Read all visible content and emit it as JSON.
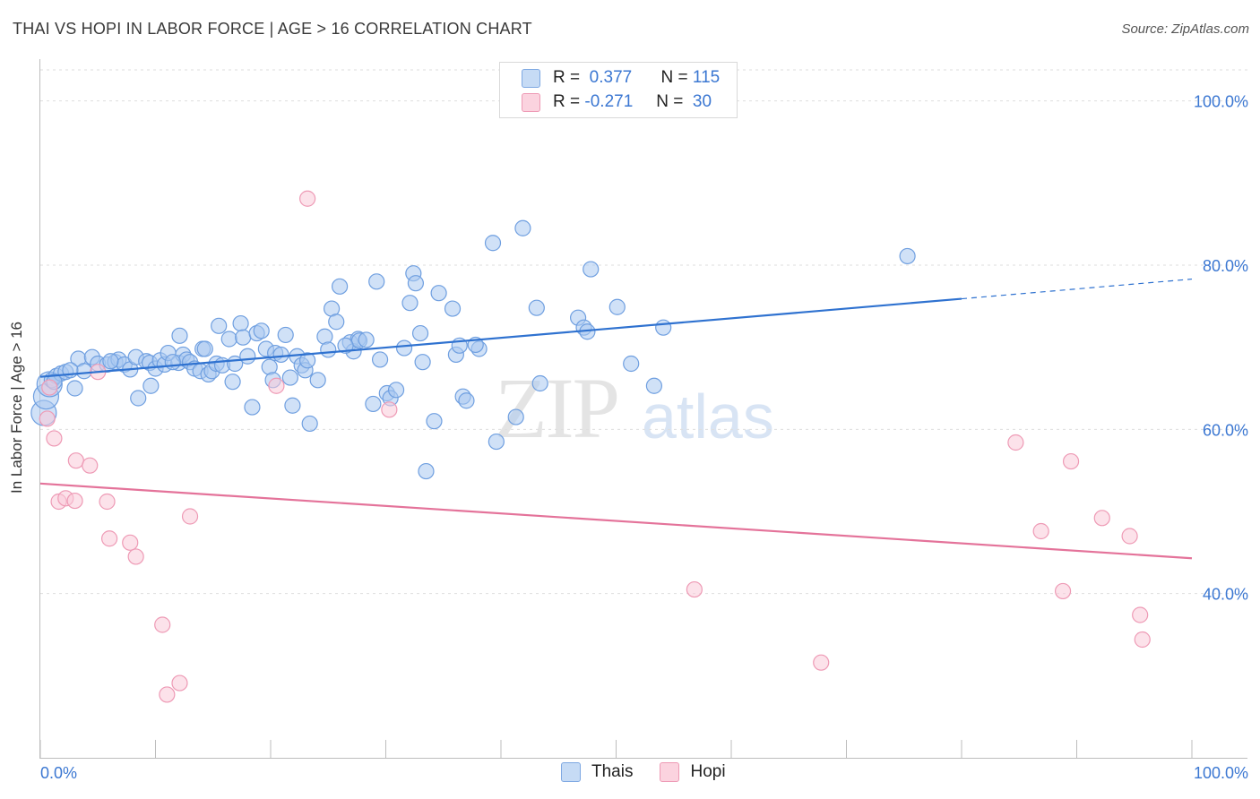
{
  "header": {
    "title": "THAI VS HOPI IN LABOR FORCE | AGE > 16 CORRELATION CHART",
    "source": "Source: ZipAtlas.com"
  },
  "legend": {
    "rows": [
      {
        "r_label": "R =",
        "r_value": "0.377",
        "n_label": "N =",
        "n_value": "115",
        "color": "#a9c8f0"
      },
      {
        "r_label": "R =",
        "r_value": "-0.271",
        "n_label": "N =",
        "n_value": "30",
        "color": "#f6b9cb"
      }
    ],
    "bottom": [
      {
        "label": "Thais",
        "color": "#a9c8f0"
      },
      {
        "label": "Hopi",
        "color": "#f6b9cb"
      }
    ]
  },
  "watermark": {
    "zip": "ZIP",
    "atlas": "atlas"
  },
  "chart_data": {
    "type": "scatter",
    "title": "THAI VS HOPI IN LABOR FORCE | AGE > 16 CORRELATION CHART",
    "xlabel": "",
    "ylabel": "In Labor Force | Age > 16",
    "xlim": [
      0,
      100
    ],
    "ylim": [
      20,
      104
    ],
    "x_tick_labels": [
      "0.0%",
      "100.0%"
    ],
    "y_ticks": [
      40,
      60,
      80,
      100
    ],
    "y_tick_labels": [
      "40.0%",
      "60.0%",
      "80.0%",
      "100.0%"
    ],
    "grid": true,
    "legend_position": "top-center",
    "colors": {
      "thais_fill": "#a9c8f0",
      "thais_stroke": "#6f9fe0",
      "thais_line": "#2f72d0",
      "hopi_fill": "#f9cad8",
      "hopi_stroke": "#ee9ab5",
      "hopi_line": "#e4739a",
      "tick_text": "#3b77d2"
    },
    "series": [
      {
        "name": "Thais",
        "points": [
          [
            0.3,
            62
          ],
          [
            0.5,
            64
          ],
          [
            0.8,
            65.5
          ],
          [
            1,
            66
          ],
          [
            1.4,
            66.5
          ],
          [
            1.8,
            66.8
          ],
          [
            2.2,
            67
          ],
          [
            3,
            65
          ],
          [
            3.3,
            68.6
          ],
          [
            3.8,
            67.1
          ],
          [
            4.5,
            68.8
          ],
          [
            5,
            68
          ],
          [
            5.8,
            67.9
          ],
          [
            6.5,
            68.2
          ],
          [
            6.8,
            68.5
          ],
          [
            7.3,
            67.9
          ],
          [
            7.8,
            67.3
          ],
          [
            8.3,
            68.8
          ],
          [
            8.5,
            63.8
          ],
          [
            9.2,
            68.3
          ],
          [
            9.5,
            68.1
          ],
          [
            9.6,
            65.3
          ],
          [
            10,
            67.4
          ],
          [
            10.4,
            68.4
          ],
          [
            10.8,
            67.9
          ],
          [
            11.1,
            69.3
          ],
          [
            12,
            68.1
          ],
          [
            12.1,
            71.4
          ],
          [
            12.4,
            69.1
          ],
          [
            12.7,
            68.5
          ],
          [
            13,
            68.2
          ],
          [
            13.4,
            67.4
          ],
          [
            13.9,
            67.1
          ],
          [
            14.1,
            69.8
          ],
          [
            14.3,
            69.8
          ],
          [
            14.6,
            66.7
          ],
          [
            14.9,
            67.1
          ],
          [
            15.3,
            68
          ],
          [
            15.5,
            72.6
          ],
          [
            15.8,
            67.8
          ],
          [
            16.4,
            71
          ],
          [
            16.7,
            65.8
          ],
          [
            16.9,
            68
          ],
          [
            17.4,
            72.9
          ],
          [
            17.6,
            71.2
          ],
          [
            18,
            68.9
          ],
          [
            18.4,
            62.7
          ],
          [
            18.8,
            71.7
          ],
          [
            19.2,
            72
          ],
          [
            19.6,
            69.8
          ],
          [
            19.9,
            67.6
          ],
          [
            20.2,
            66
          ],
          [
            20.4,
            69.3
          ],
          [
            20.9,
            69.1
          ],
          [
            21.3,
            71.5
          ],
          [
            21.7,
            66.3
          ],
          [
            21.9,
            62.9
          ],
          [
            22.3,
            68.9
          ],
          [
            22.7,
            67.8
          ],
          [
            23,
            67.2
          ],
          [
            23.2,
            68.4
          ],
          [
            23.4,
            60.7
          ],
          [
            24.1,
            66
          ],
          [
            24.7,
            71.3
          ],
          [
            25,
            69.7
          ],
          [
            25.3,
            74.7
          ],
          [
            25.7,
            73.1
          ],
          [
            26,
            77.4
          ],
          [
            26.9,
            70.6
          ],
          [
            27.2,
            69.5
          ],
          [
            27.6,
            71
          ],
          [
            27.7,
            70.8
          ],
          [
            28.3,
            70.9
          ],
          [
            28.9,
            63.1
          ],
          [
            29.2,
            78
          ],
          [
            29.5,
            68.5
          ],
          [
            30.1,
            64.4
          ],
          [
            30.4,
            63.8
          ],
          [
            30.9,
            64.8
          ],
          [
            31.6,
            69.9
          ],
          [
            32.1,
            75.4
          ],
          [
            32.4,
            79
          ],
          [
            32.6,
            77.8
          ],
          [
            33,
            71.7
          ],
          [
            33.2,
            68.2
          ],
          [
            33.5,
            54.9
          ],
          [
            34.2,
            61
          ],
          [
            34.6,
            76.6
          ],
          [
            35.8,
            74.7
          ],
          [
            36.1,
            69.1
          ],
          [
            36.4,
            70.2
          ],
          [
            36.7,
            64
          ],
          [
            37,
            63.5
          ],
          [
            38.1,
            69.8
          ],
          [
            39.3,
            82.7
          ],
          [
            39.6,
            58.5
          ],
          [
            41.3,
            61.5
          ],
          [
            41.9,
            84.5
          ],
          [
            43.1,
            74.8
          ],
          [
            43.4,
            65.6
          ],
          [
            46.7,
            73.6
          ],
          [
            47.2,
            72.4
          ],
          [
            47.5,
            71.9
          ],
          [
            47.8,
            79.5
          ],
          [
            50.1,
            74.9
          ],
          [
            51.3,
            68
          ],
          [
            53.3,
            65.3
          ],
          [
            54.1,
            72.4
          ],
          [
            75.3,
            81.1
          ],
          [
            1.2,
            65.8
          ],
          [
            2.6,
            67.2
          ],
          [
            6.1,
            68.3
          ],
          [
            11.5,
            68.2
          ],
          [
            26.5,
            70.2
          ],
          [
            37.8,
            70.3
          ]
        ],
        "trend": {
          "x0": 0,
          "y0": 66.4,
          "x1": 80,
          "y1": 75.9,
          "dashed_to_x": 100,
          "dashed_to_y": 78.3
        }
      },
      {
        "name": "Hopi",
        "points": [
          [
            0.6,
            61.3
          ],
          [
            0.8,
            65.1
          ],
          [
            1.2,
            58.9
          ],
          [
            1.6,
            51.2
          ],
          [
            2.2,
            51.6
          ],
          [
            3,
            51.3
          ],
          [
            3.1,
            56.2
          ],
          [
            4.3,
            55.6
          ],
          [
            5,
            67
          ],
          [
            5.8,
            51.2
          ],
          [
            6,
            46.7
          ],
          [
            7.8,
            46.2
          ],
          [
            8.3,
            44.5
          ],
          [
            10.6,
            36.2
          ],
          [
            12.1,
            29.1
          ],
          [
            13,
            49.4
          ],
          [
            11,
            27.7
          ],
          [
            20.5,
            65.3
          ],
          [
            23.2,
            88.1
          ],
          [
            30.3,
            62.4
          ],
          [
            56.8,
            40.5
          ],
          [
            67.8,
            31.6
          ],
          [
            84.7,
            58.4
          ],
          [
            86.9,
            47.6
          ],
          [
            88.8,
            40.3
          ],
          [
            89.5,
            56.1
          ],
          [
            92.2,
            49.2
          ],
          [
            94.6,
            47
          ],
          [
            95.5,
            37.4
          ],
          [
            95.7,
            34.4
          ]
        ],
        "trend": {
          "x0": 0,
          "y0": 53.4,
          "x1": 100,
          "y1": 44.3
        }
      }
    ]
  }
}
